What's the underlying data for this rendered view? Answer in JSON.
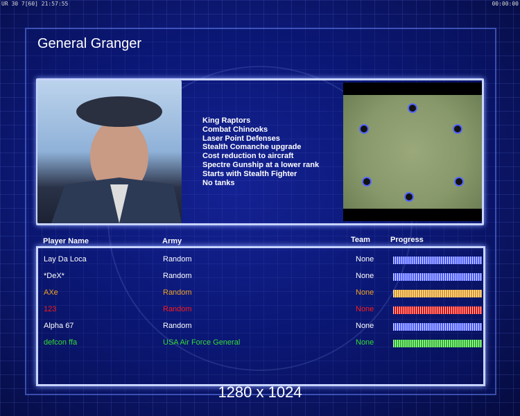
{
  "status_left": "UR 30 7[60] 21:57:55",
  "status_right": "00:00:00",
  "general_name": "General Granger",
  "features": [
    "King Raptors",
    "Combat Chinooks",
    "Laser Point Defenses",
    "Stealth Comanche upgrade",
    "Cost reduction to aircraft",
    "Spectre Gunship at a lower rank",
    "Starts with Stealth Fighter",
    "No tanks"
  ],
  "headers": {
    "name": "Player Name",
    "army": "Army",
    "team": "Team",
    "progress": "Progress"
  },
  "players": [
    {
      "name": "Lay Da Loca",
      "army": "Random",
      "team": "None",
      "color": "#ffffff",
      "bar": "#4b5cff",
      "progress": 100
    },
    {
      "name": "*DeX*",
      "army": "Random",
      "team": "None",
      "color": "#ffffff",
      "bar": "#4b5cff",
      "progress": 100
    },
    {
      "name": "AXe",
      "army": "Random",
      "team": "None",
      "color": "#f0a020",
      "bar": "#e09a20",
      "progress": 100
    },
    {
      "name": "123",
      "army": "Random",
      "team": "None",
      "color": "#ff1a1a",
      "bar": "#e01010",
      "progress": 100
    },
    {
      "name": "Alpha 67",
      "army": "Random",
      "team": "None",
      "color": "#ffffff",
      "bar": "#4b5cff",
      "progress": 100
    },
    {
      "name": "defcon ffa",
      "army": "USA Air Force General",
      "team": "None",
      "color": "#33dd33",
      "bar": "#22bb22",
      "progress": 100
    }
  ],
  "resolution": "1280 x 1024"
}
